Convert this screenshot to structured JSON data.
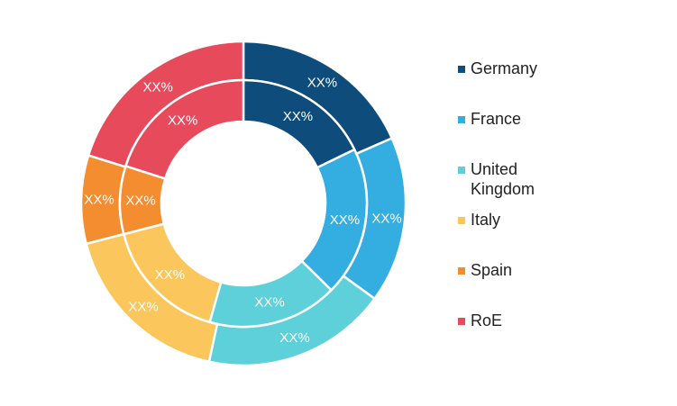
{
  "chart_data": {
    "type": "donut",
    "series": [
      {
        "name": "",
        "ring": "outer",
        "categories": [
          "Germany",
          "France",
          "United Kingdom",
          "Italy",
          "Spain",
          "RoE"
        ],
        "values": [
          18.4,
          16.6,
          18.4,
          17.6,
          8.8,
          20.2
        ],
        "labels": [
          "XX%",
          "XX%",
          "XX%",
          "XX%",
          "XX%",
          "XX%"
        ]
      },
      {
        "name": "",
        "ring": "inner",
        "categories": [
          "Germany",
          "France",
          "United Kingdom",
          "Italy",
          "Spain",
          "RoE"
        ],
        "values": [
          17.8,
          19.6,
          17.0,
          16.6,
          8.9,
          20.1
        ],
        "labels": [
          "XX%",
          "XX%",
          "XX%",
          "XX%",
          "XX%",
          "XX%"
        ]
      }
    ],
    "colors": [
      "#0e4d7b",
      "#34ade1",
      "#5dd0da",
      "#fbc65b",
      "#f38d2f",
      "#e64a5b"
    ],
    "legend": {
      "placement": "right",
      "items": [
        {
          "label": "Germany",
          "color": "#0e4d7b"
        },
        {
          "label": "France",
          "color": "#34ade1"
        },
        {
          "label": "United\nKingdom",
          "color": "#5dd0da"
        },
        {
          "label": "Italy",
          "color": "#fbc65b"
        },
        {
          "label": "Spain",
          "color": "#f38d2f"
        },
        {
          "label": "RoE",
          "color": "#e64a5b"
        }
      ]
    }
  }
}
